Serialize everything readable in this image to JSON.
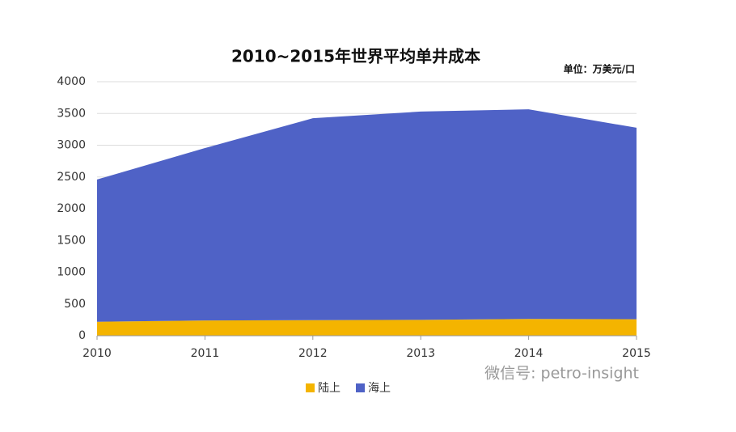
{
  "chart_data": {
    "type": "stacked-area",
    "title": "2010~2015年世界平均单井成本",
    "unit_note": "单位：万美元/口",
    "watermark": "微信号: petro-insight",
    "categories": [
      "2010",
      "2011",
      "2012",
      "2013",
      "2014",
      "2015"
    ],
    "series": [
      {
        "name": "陆上",
        "color": "#f4b400",
        "values": [
          220,
          240,
          245,
          250,
          265,
          260
        ]
      },
      {
        "name": "海上",
        "color": "#4f62c6",
        "values": [
          2240,
          2715,
          3180,
          3280,
          3300,
          3015
        ]
      }
    ],
    "ylim": [
      0,
      4000
    ],
    "yticks": [
      0,
      500,
      1000,
      1500,
      2000,
      2500,
      3000,
      3500,
      4000
    ],
    "grid": true,
    "legend": "bottom"
  }
}
